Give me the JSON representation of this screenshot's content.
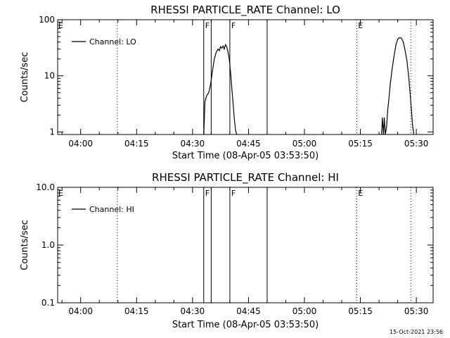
{
  "chart_data": [
    {
      "type": "line",
      "title": "RHESSI PARTICLE_RATE Channel: LO",
      "xlabel": "Start Time (08-Apr-05 03:53:50)",
      "ylabel": "Counts/sec",
      "y_scale": "log",
      "ylim": [
        0.9,
        100
      ],
      "xlim": [
        "03:53:50",
        "05:34:30"
      ],
      "x_tick_labels": [
        "04:00",
        "04:15",
        "04:30",
        "04:45",
        "05:00",
        "05:15",
        "05:30"
      ],
      "x_ticks": [
        "04:00",
        "04:15",
        "04:30",
        "04:45",
        "05:00",
        "05:15",
        "05:30"
      ],
      "y_tick_labels": [
        "1",
        "10",
        "100"
      ],
      "y_ticks": [
        1,
        10,
        100
      ],
      "legend": {
        "position": "top-left",
        "entries": [
          "Channel: LO"
        ]
      },
      "series": [
        {
          "name": "Channel: LO",
          "segments": [
            [
              [
                "04:33:00",
                0.9
              ],
              [
                "04:33:20",
                3.5
              ],
              [
                "04:33:50",
                4.5
              ],
              [
                "04:34:20",
                5.0
              ],
              [
                "04:34:50",
                7.0
              ],
              [
                "04:35:20",
                12
              ],
              [
                "04:35:50",
                20
              ],
              [
                "04:36:20",
                26
              ],
              [
                "04:36:50",
                30
              ],
              [
                "04:37:10",
                28
              ],
              [
                "04:37:30",
                33
              ],
              [
                "04:37:50",
                31
              ],
              [
                "04:38:10",
                34
              ],
              [
                "04:38:30",
                30
              ],
              [
                "04:38:50",
                36
              ],
              [
                "04:39:10",
                33
              ],
              [
                "04:39:30",
                27
              ],
              [
                "04:39:50",
                20
              ],
              [
                "04:40:10",
                12
              ],
              [
                "04:40:30",
                6.5
              ],
              [
                "04:40:50",
                3.5
              ],
              [
                "04:41:10",
                1.8
              ],
              [
                "04:41:30",
                1.1
              ],
              [
                "04:41:50",
                0.9
              ]
            ],
            [
              [
                "05:20:40",
                0.9
              ],
              [
                "05:20:55",
                1.8
              ],
              [
                "05:21:10",
                0.9
              ],
              [
                "05:21:25",
                1.8
              ],
              [
                "05:21:40",
                0.9
              ],
              [
                "05:22:00",
                1.2
              ],
              [
                "05:22:20",
                2.5
              ],
              [
                "05:22:40",
                4.0
              ],
              [
                "05:23:00",
                7.0
              ],
              [
                "05:23:30",
                13
              ],
              [
                "05:24:00",
                22
              ],
              [
                "05:24:30",
                35
              ],
              [
                "05:25:00",
                45
              ],
              [
                "05:25:30",
                48
              ],
              [
                "05:26:00",
                47
              ],
              [
                "05:26:30",
                40
              ],
              [
                "05:27:00",
                28
              ],
              [
                "05:27:30",
                18
              ],
              [
                "05:28:00",
                9.0
              ],
              [
                "05:28:30",
                3.5
              ],
              [
                "05:29:00",
                1.3
              ],
              [
                "05:29:20",
                0.9
              ]
            ]
          ]
        }
      ],
      "vertical_lines": [
        {
          "time": "04:09:50",
          "style": "dotted",
          "label": ""
        },
        {
          "time": "04:33:00",
          "style": "solid",
          "label": "F"
        },
        {
          "time": "04:35:00",
          "style": "solid",
          "label": ""
        },
        {
          "time": "04:40:00",
          "style": "solid",
          "label": "F"
        },
        {
          "time": "04:50:00",
          "style": "solid",
          "label": ""
        },
        {
          "time": "05:14:00",
          "style": "dotted",
          "label": "E"
        },
        {
          "time": "05:28:30",
          "style": "dotted",
          "label": ""
        }
      ],
      "corner_markers": [
        "E"
      ]
    },
    {
      "type": "line",
      "title": "RHESSI PARTICLE_RATE Channel: HI",
      "xlabel": "Start Time (08-Apr-05 03:53:50)",
      "ylabel": "Counts/sec",
      "y_scale": "log",
      "ylim": [
        0.1,
        10
      ],
      "xlim": [
        "03:53:50",
        "05:34:30"
      ],
      "x_tick_labels": [
        "04:00",
        "04:15",
        "04:30",
        "04:45",
        "05:00",
        "05:15",
        "05:30"
      ],
      "x_ticks": [
        "04:00",
        "04:15",
        "04:30",
        "04:45",
        "05:00",
        "05:15",
        "05:30"
      ],
      "y_tick_labels": [
        "0.1",
        "1.0",
        "10.0"
      ],
      "y_ticks": [
        0.1,
        1,
        10
      ],
      "legend": {
        "position": "top-left",
        "entries": [
          "Channel: HI"
        ]
      },
      "series": [
        {
          "name": "Channel: HI",
          "segments": []
        }
      ],
      "vertical_lines": [
        {
          "time": "04:09:50",
          "style": "dotted",
          "label": ""
        },
        {
          "time": "04:33:00",
          "style": "solid",
          "label": "F"
        },
        {
          "time": "04:35:00",
          "style": "solid",
          "label": ""
        },
        {
          "time": "04:40:00",
          "style": "solid",
          "label": "F"
        },
        {
          "time": "04:50:00",
          "style": "solid",
          "label": ""
        },
        {
          "time": "05:14:00",
          "style": "dotted",
          "label": "E"
        },
        {
          "time": "05:28:30",
          "style": "dotted",
          "label": ""
        }
      ],
      "corner_markers": [
        "E"
      ]
    }
  ],
  "footer": {
    "timestamp": "15-Oct-2021 23:56"
  }
}
